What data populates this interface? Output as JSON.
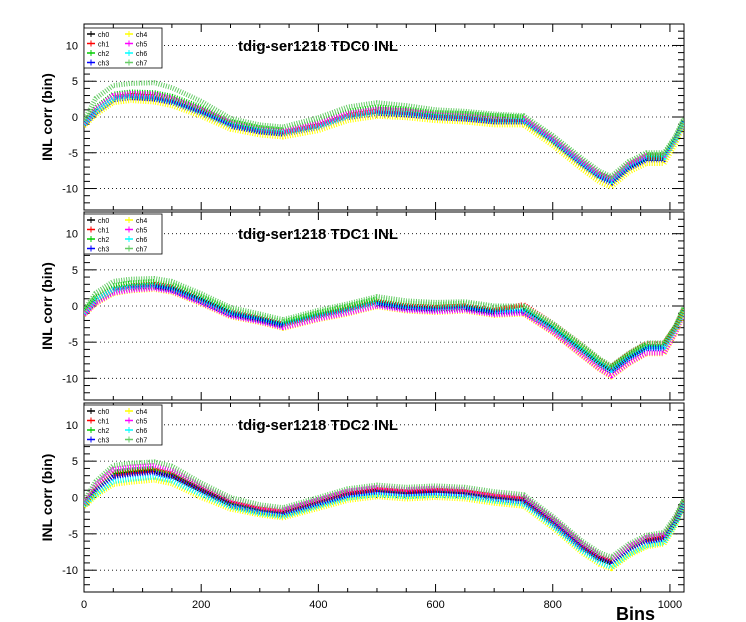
{
  "x_axis_title": "Bins",
  "chart_data": [
    {
      "type": "line",
      "title": "tdig-ser1218 TDC0 INL",
      "ylabel": "INL corr (bin)",
      "xlabel": "",
      "xlim": [
        0,
        1024
      ],
      "ylim": [
        -13,
        13
      ],
      "x_ticks": [
        0,
        200,
        400,
        600,
        800,
        1000
      ],
      "y_ticks": [
        -10,
        -5,
        0,
        5,
        10
      ],
      "grid": "horizontal dotted at y ticks",
      "legend_position": "top-left",
      "x": [
        0,
        20,
        50,
        80,
        120,
        150,
        200,
        250,
        300,
        340,
        400,
        450,
        500,
        550,
        600,
        650,
        700,
        750,
        800,
        850,
        880,
        900,
        930,
        960,
        990,
        1010,
        1024
      ],
      "series": [
        {
          "name": "ch0",
          "color": "#000000",
          "values": [
            -1,
            0.7,
            2.5,
            2.8,
            2.6,
            2.1,
            0.6,
            -1.2,
            -2.0,
            -2.3,
            -1.4,
            0.0,
            0.6,
            0.4,
            0.0,
            -0.2,
            -0.6,
            -0.6,
            -3.4,
            -6.6,
            -8.4,
            -9.0,
            -7.0,
            -5.8,
            -5.8,
            -3.2,
            -0.6
          ]
        },
        {
          "name": "ch1",
          "color": "#ff0000",
          "values": [
            -1,
            0.9,
            2.7,
            3.0,
            2.8,
            2.3,
            0.8,
            -1.0,
            -1.9,
            -2.2,
            -1.2,
            0.2,
            0.8,
            0.6,
            0.2,
            0.0,
            -0.4,
            -0.4,
            -3.2,
            -6.4,
            -8.2,
            -8.9,
            -6.8,
            -5.6,
            -5.6,
            -3.0,
            -0.5
          ]
        },
        {
          "name": "ch2",
          "color": "#00cc00",
          "values": [
            -0.8,
            1.3,
            3.2,
            3.5,
            3.4,
            2.9,
            1.4,
            -0.6,
            -1.5,
            -1.8,
            -0.6,
            0.8,
            1.4,
            1.1,
            0.6,
            0.5,
            0.2,
            0.0,
            -2.8,
            -6.0,
            -7.9,
            -8.6,
            -6.5,
            -5.3,
            -5.3,
            -2.8,
            -0.3
          ]
        },
        {
          "name": "ch3",
          "color": "#0000ff",
          "values": [
            -1.1,
            0.6,
            2.4,
            2.7,
            2.5,
            2.0,
            0.5,
            -1.3,
            -2.1,
            -2.4,
            -1.5,
            -0.1,
            0.5,
            0.3,
            -0.1,
            -0.3,
            -0.7,
            -0.7,
            -3.5,
            -6.8,
            -8.6,
            -9.3,
            -7.2,
            -6.0,
            -6.0,
            -3.3,
            -0.7
          ]
        },
        {
          "name": "ch4",
          "color": "#ffff00",
          "values": [
            -1.3,
            0.3,
            2.0,
            2.3,
            2.1,
            1.6,
            0.1,
            -1.7,
            -2.5,
            -2.8,
            -1.9,
            -0.5,
            0.1,
            -0.1,
            -0.5,
            -0.7,
            -1.1,
            -1.1,
            -4.0,
            -7.3,
            -9.1,
            -9.8,
            -7.7,
            -6.5,
            -6.5,
            -3.7,
            -0.9
          ]
        },
        {
          "name": "ch5",
          "color": "#ff00ff",
          "values": [
            -0.9,
            1.1,
            3.0,
            3.3,
            3.2,
            2.6,
            1.1,
            -0.8,
            -1.7,
            -2.0,
            -0.9,
            0.5,
            1.1,
            0.9,
            0.4,
            0.3,
            -0.1,
            -0.2,
            -3.0,
            -6.2,
            -8.0,
            -8.7,
            -6.6,
            -5.4,
            -5.4,
            -2.9,
            -0.4
          ]
        },
        {
          "name": "ch6",
          "color": "#00ffff",
          "values": [
            -1.0,
            0.8,
            2.6,
            2.9,
            2.7,
            2.2,
            0.7,
            -1.1,
            -1.9,
            -2.2,
            -1.3,
            0.1,
            0.7,
            0.5,
            0.1,
            -0.1,
            -0.5,
            -0.5,
            -3.3,
            -6.5,
            -8.3,
            -9.0,
            -6.9,
            -5.7,
            -5.7,
            -3.1,
            -0.6
          ]
        },
        {
          "name": "ch7",
          "color": "#66cc66",
          "values": [
            -0.5,
            2.6,
            4.4,
            4.7,
            4.8,
            4.1,
            2.2,
            -0.2,
            -1.1,
            -1.4,
            -0.1,
            1.4,
            2.0,
            1.6,
            1.0,
            0.8,
            0.4,
            0.2,
            -2.6,
            -5.8,
            -7.6,
            -8.3,
            -6.2,
            -5.0,
            -5.0,
            -2.6,
            -0.2
          ]
        }
      ]
    },
    {
      "type": "line",
      "title": "tdig-ser1218 TDC1 INL",
      "ylabel": "INL corr (bin)",
      "xlabel": "",
      "xlim": [
        0,
        1024
      ],
      "ylim": [
        -13,
        13
      ],
      "x_ticks": [
        0,
        200,
        400,
        600,
        800,
        1000
      ],
      "y_ticks": [
        -10,
        -5,
        0,
        5,
        10
      ],
      "grid": "horizontal dotted at y ticks",
      "legend_position": "top-left",
      "x": [
        0,
        20,
        50,
        80,
        120,
        150,
        200,
        250,
        300,
        340,
        400,
        450,
        500,
        550,
        600,
        650,
        700,
        750,
        800,
        850,
        880,
        900,
        930,
        960,
        990,
        1010,
        1024
      ],
      "series": [
        {
          "name": "ch0",
          "color": "#000000",
          "values": [
            -1,
            0.8,
            2.2,
            2.6,
            2.8,
            2.4,
            0.8,
            -1.0,
            -1.8,
            -2.6,
            -1.4,
            -0.6,
            0.4,
            -0.2,
            -0.4,
            -0.2,
            -0.8,
            -0.6,
            -3.0,
            -6.0,
            -7.8,
            -8.8,
            -7.0,
            -5.6,
            -5.6,
            -3.0,
            -0.6
          ]
        },
        {
          "name": "ch1",
          "color": "#ff0000",
          "values": [
            -1,
            1.0,
            2.4,
            2.8,
            3.0,
            2.6,
            1.0,
            -0.8,
            -1.7,
            -2.5,
            -1.3,
            -0.4,
            0.6,
            0.0,
            -0.2,
            0.0,
            -0.6,
            0.2,
            -2.4,
            -5.4,
            -7.4,
            -8.4,
            -6.6,
            -5.2,
            -5.2,
            -2.8,
            -0.4
          ]
        },
        {
          "name": "ch2",
          "color": "#00cc00",
          "values": [
            -0.8,
            1.3,
            2.8,
            3.2,
            3.4,
            3.0,
            1.3,
            -0.5,
            -1.4,
            -2.2,
            -0.9,
            0.0,
            1.0,
            0.4,
            0.2,
            0.4,
            -0.2,
            -0.2,
            -2.6,
            -5.6,
            -7.5,
            -8.5,
            -6.7,
            -5.3,
            -5.3,
            -2.8,
            -0.3
          ]
        },
        {
          "name": "ch3",
          "color": "#0000ff",
          "values": [
            -1.1,
            0.6,
            2.0,
            2.4,
            2.6,
            2.2,
            0.6,
            -1.2,
            -2.0,
            -2.8,
            -1.6,
            -0.8,
            0.2,
            -0.4,
            -0.6,
            -0.4,
            -1.0,
            -0.8,
            -3.2,
            -6.3,
            -8.1,
            -9.1,
            -7.3,
            -5.9,
            -5.9,
            -3.2,
            -0.7
          ]
        },
        {
          "name": "ch4",
          "color": "#ffff00",
          "values": [
            -1.3,
            0.3,
            1.7,
            2.1,
            2.3,
            1.9,
            0.3,
            -1.5,
            -2.3,
            -3.1,
            -1.9,
            -1.1,
            -0.1,
            -0.7,
            -0.9,
            -0.7,
            -1.3,
            -1.1,
            -3.7,
            -6.9,
            -8.8,
            -9.8,
            -8.0,
            -6.6,
            -6.6,
            -3.7,
            -0.9
          ]
        },
        {
          "name": "ch5",
          "color": "#ff00ff",
          "values": [
            -1.2,
            0.4,
            1.8,
            2.2,
            2.4,
            2.0,
            0.4,
            -1.4,
            -2.2,
            -3.0,
            -1.8,
            -1.0,
            0.0,
            -0.6,
            -0.8,
            -0.6,
            -1.2,
            -1.0,
            -3.6,
            -6.8,
            -8.7,
            -9.7,
            -7.9,
            -6.5,
            -6.5,
            -3.6,
            -0.8
          ]
        },
        {
          "name": "ch6",
          "color": "#00ffff",
          "values": [
            -1.0,
            0.9,
            2.3,
            2.7,
            2.9,
            2.5,
            0.9,
            -0.9,
            -1.7,
            -2.5,
            -1.3,
            -0.5,
            0.5,
            -0.1,
            -0.3,
            -0.1,
            -0.7,
            -0.5,
            -3.1,
            -6.1,
            -7.9,
            -8.9,
            -7.1,
            -5.7,
            -5.7,
            -3.1,
            -0.6
          ]
        },
        {
          "name": "ch7",
          "color": "#66cc66",
          "values": [
            -0.6,
            1.8,
            3.4,
            3.7,
            3.8,
            3.4,
            1.7,
            -0.2,
            -1.1,
            -1.9,
            -0.6,
            0.3,
            1.3,
            0.7,
            0.5,
            0.6,
            0.0,
            0.0,
            -2.4,
            -5.4,
            -7.3,
            -8.3,
            -6.5,
            -5.1,
            -5.1,
            -2.7,
            -0.2
          ]
        }
      ]
    },
    {
      "type": "line",
      "title": "tdig-ser1218 TDC2 INL",
      "ylabel": "INL corr (bin)",
      "xlabel": "Bins",
      "xlim": [
        0,
        1024
      ],
      "ylim": [
        -13,
        13
      ],
      "x_ticks": [
        0,
        200,
        400,
        600,
        800,
        1000
      ],
      "y_ticks": [
        -10,
        -5,
        0,
        5,
        10
      ],
      "grid": "horizontal dotted at y ticks",
      "legend_position": "top-left",
      "x": [
        0,
        20,
        50,
        80,
        120,
        150,
        200,
        250,
        300,
        340,
        400,
        450,
        500,
        550,
        600,
        650,
        700,
        750,
        800,
        850,
        880,
        900,
        930,
        960,
        990,
        1010,
        1024
      ],
      "series": [
        {
          "name": "ch0",
          "color": "#000000",
          "values": [
            -1,
            1.0,
            3.0,
            3.3,
            3.6,
            3.0,
            1.0,
            -0.9,
            -1.8,
            -2.2,
            -0.8,
            0.4,
            0.9,
            0.6,
            0.8,
            0.6,
            0.0,
            -0.4,
            -3.4,
            -6.8,
            -8.4,
            -9.0,
            -7.2,
            -6.0,
            -5.6,
            -3.2,
            -0.6
          ]
        },
        {
          "name": "ch1",
          "color": "#ff0000",
          "values": [
            -1,
            1.2,
            3.2,
            3.5,
            3.8,
            3.2,
            1.2,
            -0.7,
            -1.6,
            -2.0,
            -0.6,
            0.6,
            1.1,
            0.8,
            1.0,
            0.8,
            0.2,
            -0.2,
            -3.2,
            -6.6,
            -8.2,
            -8.8,
            -7.0,
            -5.8,
            -5.4,
            -3.0,
            -0.5
          ]
        },
        {
          "name": "ch2",
          "color": "#00cc00",
          "values": [
            -0.9,
            1.4,
            3.5,
            3.8,
            4.0,
            3.5,
            1.4,
            -0.5,
            -1.4,
            -1.8,
            -0.4,
            0.8,
            1.3,
            1.0,
            1.2,
            1.0,
            0.4,
            0.0,
            -3.0,
            -6.4,
            -8.0,
            -8.6,
            -6.8,
            -5.6,
            -5.2,
            -2.8,
            -0.4
          ]
        },
        {
          "name": "ch3",
          "color": "#0000ff",
          "values": [
            -1.1,
            0.8,
            2.8,
            3.1,
            3.4,
            2.8,
            0.8,
            -1.1,
            -2.0,
            -2.4,
            -1.0,
            0.2,
            0.7,
            0.4,
            0.6,
            0.4,
            -0.2,
            -0.6,
            -3.6,
            -7.0,
            -8.6,
            -9.2,
            -7.4,
            -6.2,
            -5.8,
            -3.4,
            -0.7
          ]
        },
        {
          "name": "ch4",
          "color": "#ffff00",
          "values": [
            -1.3,
            0.2,
            1.8,
            2.1,
            2.4,
            1.9,
            0.0,
            -1.6,
            -2.4,
            -2.8,
            -1.5,
            -0.4,
            0.1,
            -0.2,
            0.0,
            -0.2,
            -0.8,
            -1.2,
            -4.2,
            -7.6,
            -9.2,
            -9.8,
            -8.0,
            -6.8,
            -6.4,
            -3.8,
            -0.9
          ]
        },
        {
          "name": "ch5",
          "color": "#ff00ff",
          "values": [
            -0.8,
            1.7,
            3.9,
            4.2,
            4.4,
            3.8,
            1.6,
            -0.3,
            -1.3,
            -1.7,
            -0.3,
            0.9,
            1.4,
            1.1,
            1.3,
            1.1,
            0.5,
            0.1,
            -2.9,
            -6.3,
            -7.9,
            -8.5,
            -6.7,
            -5.5,
            -5.1,
            -2.7,
            -0.3
          ]
        },
        {
          "name": "ch6",
          "color": "#00ffff",
          "values": [
            -1.1,
            0.4,
            2.2,
            2.5,
            2.8,
            2.3,
            0.4,
            -1.3,
            -2.2,
            -2.6,
            -1.2,
            -0.1,
            0.4,
            0.1,
            0.3,
            0.1,
            -0.5,
            -0.9,
            -3.9,
            -7.3,
            -8.9,
            -9.6,
            -7.8,
            -6.6,
            -6.2,
            -3.6,
            -0.8
          ]
        },
        {
          "name": "ch7",
          "color": "#66cc66",
          "values": [
            -0.5,
            2.2,
            4.4,
            4.7,
            4.9,
            4.3,
            2.0,
            0.0,
            -1.0,
            -1.4,
            0.0,
            1.2,
            1.7,
            1.4,
            1.6,
            1.4,
            0.8,
            0.4,
            -2.6,
            -6.0,
            -7.6,
            -8.2,
            -6.4,
            -5.2,
            -4.8,
            -2.5,
            -0.2
          ]
        }
      ]
    }
  ]
}
